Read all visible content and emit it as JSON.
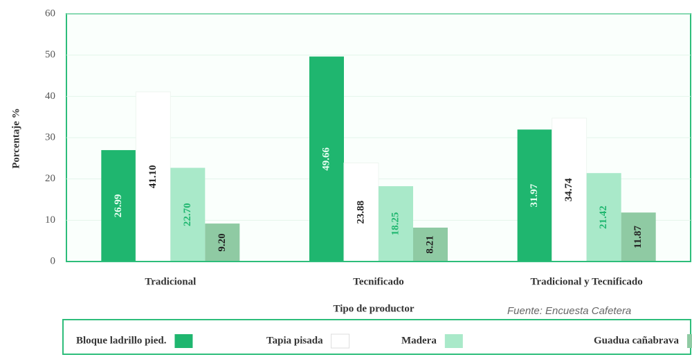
{
  "chart_data": {
    "type": "bar",
    "ylabel": "Porcentaje  %",
    "xlabel": "Tipo de productor",
    "source": "Fuente: Encuesta Cafetera",
    "categories": [
      "Tradicional",
      "Tecnificado",
      "Tradicional y Tecnificado"
    ],
    "series": [
      {
        "name": "Bloque ladrillo pied.",
        "color": "#1fb66f",
        "label_color": "#e8fff2",
        "values": [
          26.99,
          49.66,
          31.97
        ],
        "value_labels": [
          "26.99",
          "49.66",
          "31.97"
        ]
      },
      {
        "name": "Tapia pisada",
        "color": "#ffffff",
        "label_color": "#222222",
        "values": [
          41.1,
          23.88,
          34.74
        ],
        "value_labels": [
          "41.10",
          "23.88",
          "34.74"
        ]
      },
      {
        "name": "Madera",
        "color": "#a9e9c9",
        "label_color": "#1fb66f",
        "values": [
          22.7,
          18.25,
          21.42
        ],
        "value_labels": [
          "22.70",
          "18.25",
          "21.42"
        ]
      },
      {
        "name": "Guadua cañabrava",
        "color": "#8fcaa3",
        "label_color": "#222222",
        "values": [
          9.2,
          8.21,
          11.87
        ],
        "value_labels": [
          "9.20",
          "8.21",
          "11.87"
        ]
      }
    ],
    "ylim": [
      0,
      60
    ],
    "yticks": [
      0,
      10,
      20,
      30,
      40,
      50,
      60
    ],
    "grid": true
  }
}
